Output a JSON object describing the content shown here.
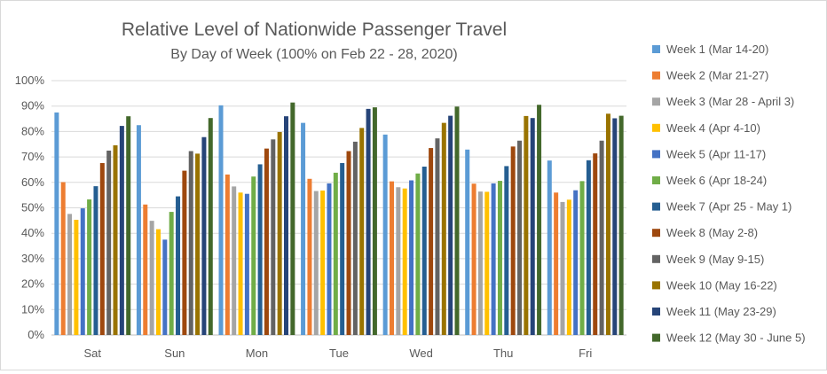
{
  "chart_data": {
    "type": "bar",
    "title": "Relative Level of Nationwide Passenger Travel",
    "subtitle": "By Day of Week (100% on Feb 22 - 28, 2020)",
    "xlabel": "",
    "ylabel": "",
    "ylim": [
      0,
      100
    ],
    "y_tick_step": 10,
    "y_tick_format": "percent",
    "grid": "horizontal",
    "legend_position": "right",
    "categories": [
      "Sat",
      "Sun",
      "Mon",
      "Tue",
      "Wed",
      "Thu",
      "Fri"
    ],
    "series": [
      {
        "name": "Week 1 (Mar 14-20)",
        "color": "#5B9BD5",
        "values": [
          87.5,
          82.5,
          90.3,
          83.4,
          78.8,
          72.9,
          68.6
        ]
      },
      {
        "name": "Week 2 (Mar 21-27)",
        "color": "#ED7D31",
        "values": [
          60.1,
          51.3,
          63.1,
          61.4,
          60.4,
          59.5,
          56.0
        ]
      },
      {
        "name": "Week 3 (Mar 28 - April 3)",
        "color": "#A5A5A5",
        "values": [
          47.6,
          44.9,
          58.4,
          56.6,
          58.1,
          56.4,
          52.3
        ]
      },
      {
        "name": "Week 4 (Apr 4-10)",
        "color": "#FFC000",
        "values": [
          45.3,
          41.6,
          56.0,
          56.8,
          57.6,
          56.3,
          53.2
        ]
      },
      {
        "name": "Week 5 (Apr 11-17)",
        "color": "#4472C4",
        "values": [
          49.8,
          37.5,
          55.5,
          59.6,
          60.8,
          59.6,
          56.9
        ]
      },
      {
        "name": "Week 6 (Apr 18-24)",
        "color": "#70AD47",
        "values": [
          53.3,
          48.4,
          62.3,
          63.8,
          63.5,
          60.6,
          60.5
        ]
      },
      {
        "name": "Week 7 (Apr 25 - May 1)",
        "color": "#255E91",
        "values": [
          58.5,
          54.5,
          67.1,
          67.6,
          66.2,
          66.4,
          68.7
        ]
      },
      {
        "name": "Week 8 (May 2-8)",
        "color": "#9E480E",
        "values": [
          67.6,
          64.6,
          73.3,
          72.3,
          73.5,
          74.1,
          71.4
        ]
      },
      {
        "name": "Week 9 (May 9-15)",
        "color": "#636363",
        "values": [
          72.5,
          72.3,
          76.9,
          76.0,
          77.3,
          76.4,
          76.4
        ]
      },
      {
        "name": "Week 10 (May 16-22)",
        "color": "#997300",
        "values": [
          74.6,
          71.3,
          79.8,
          81.4,
          83.4,
          86.1,
          87.0
        ]
      },
      {
        "name": "Week 11 (May 23-29)",
        "color": "#264478",
        "values": [
          82.2,
          77.8,
          86.0,
          88.9,
          86.2,
          85.3,
          85.2
        ]
      },
      {
        "name": "Week 12 (May 30 - June 5)",
        "color": "#43682B",
        "values": [
          86.0,
          85.3,
          91.4,
          89.5,
          89.8,
          90.5,
          86.2
        ]
      }
    ]
  }
}
